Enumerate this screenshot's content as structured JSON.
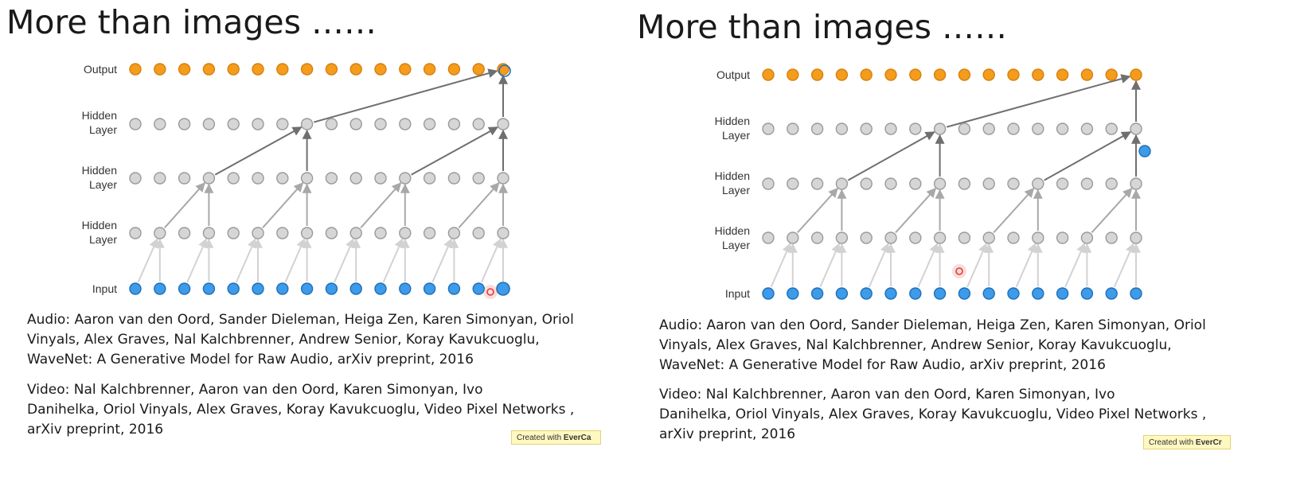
{
  "slides": [
    {
      "title": "More than images ……",
      "labels": {
        "output": "Output",
        "hidden": [
          "Hidden",
          "Layer"
        ],
        "input": "Input"
      },
      "audio_ref": [
        "Audio: Aaron van den Oord, Sander Dieleman, Heiga Zen, Karen Simonyan, Oriol",
        "Vinyals, Alex Graves, Nal Kalchbrenner, Andrew Senior, Koray Kavukcuoglu,",
        "WaveNet: A Generative Model for Raw Audio, arXiv preprint, 2016"
      ],
      "video_ref": [
        "Video: Nal Kalchbrenner, Aaron van den Oord, Karen Simonyan, Ivo",
        "Danihelka, Oriol Vinyals, Alex Graves, Koray Kavukcuoglu, Video Pixel Networks ,",
        "arXiv preprint, 2016"
      ],
      "watermark": {
        "prefix": "Created with ",
        "brand": "EverCa"
      },
      "diagram_state": {
        "output_highlight": "last",
        "hidden_dot": false,
        "input_highlight": "last"
      }
    },
    {
      "title": "More than images ……",
      "labels": {
        "output": "Output",
        "hidden": [
          "Hidden",
          "Layer"
        ],
        "input": "Input"
      },
      "audio_ref": [
        "Audio: Aaron van den Oord, Sander Dieleman, Heiga Zen, Karen Simonyan, Oriol",
        "Vinyals, Alex Graves, Nal Kalchbrenner, Andrew Senior, Koray Kavukcuoglu,",
        "WaveNet: A Generative Model for Raw Audio, arXiv preprint, 2016"
      ],
      "video_ref": [
        "Video: Nal Kalchbrenner, Aaron van den Oord, Karen Simonyan, Ivo",
        "Danihelka, Oriol Vinyals, Alex Graves, Koray Kavukcuoglu, Video Pixel Networks ,",
        "arXiv preprint, 2016"
      ],
      "watermark": {
        "prefix": "Created with ",
        "brand": "EverCr"
      },
      "diagram_state": {
        "output_highlight": "none",
        "hidden_dot": true,
        "input_highlight": "none"
      }
    }
  ],
  "colors": {
    "output_node": "#f39c1d",
    "output_stroke": "#d9800a",
    "hidden_node": "#d6d6d6",
    "hidden_stroke": "#9a9a9a",
    "input_node": "#3d9be9",
    "input_stroke": "#1f6fb8",
    "edge_strong": "#6f6f6f",
    "edge_medium": "#a8a8a8",
    "edge_faint": "#d2d2d2",
    "cursor": "#e23b3b"
  },
  "node_count_per_layer": 16
}
